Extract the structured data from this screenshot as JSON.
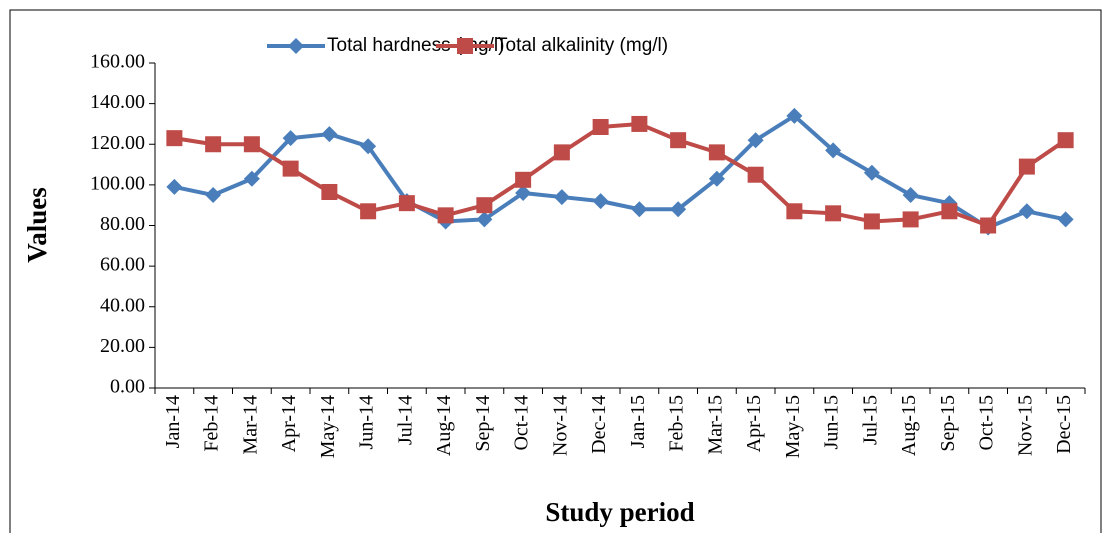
{
  "chart_data": {
    "type": "line",
    "y_label": "Values",
    "x_label": "Study period",
    "categories": [
      "Jan-14",
      "Feb-14",
      "Mar-14",
      "Apr-14",
      "May-14",
      "Jun-14",
      "Jul-14",
      "Aug-14",
      "Sep-14",
      "Oct-14",
      "Nov-14",
      "Dec-14",
      "Jan-15",
      "Feb-15",
      "Mar-15",
      "Apr-15",
      "May-15",
      "Jun-15",
      "Jul-15",
      "Aug-15",
      "Sep-15",
      "Oct-15",
      "Nov-15",
      "Dec-15"
    ],
    "series": [
      {
        "name": "Total hardness (mg/l)",
        "color": "#4a7ebb",
        "marker": "diamond",
        "values": [
          99,
          95,
          103,
          123,
          125,
          119,
          92,
          82,
          83,
          96,
          94,
          92,
          88,
          88,
          103,
          122,
          134,
          117,
          106,
          95,
          91,
          79,
          87,
          83
        ]
      },
      {
        "name": "Total alkalinity (mg/l)",
        "color": "#be4b48",
        "marker": "square",
        "values": [
          123,
          120,
          120,
          108,
          96.5,
          87,
          91,
          85,
          90,
          102.5,
          116,
          128.5,
          130,
          122,
          116,
          105,
          87,
          86,
          82,
          83,
          87,
          80,
          109,
          122
        ]
      }
    ],
    "ylim": [
      0,
      160
    ],
    "yticks": [
      {
        "value": 0,
        "label": "0.00"
      },
      {
        "value": 20,
        "label": "20.00"
      },
      {
        "value": 40,
        "label": "40.00"
      },
      {
        "value": 60,
        "label": "60.00"
      },
      {
        "value": 80,
        "label": "80.00"
      },
      {
        "value": 100,
        "label": "100.00"
      },
      {
        "value": 120,
        "label": "120.00"
      },
      {
        "value": 140,
        "label": "140.00"
      },
      {
        "value": 160,
        "label": "160.00"
      }
    ],
    "legend": "top",
    "grid": false
  }
}
